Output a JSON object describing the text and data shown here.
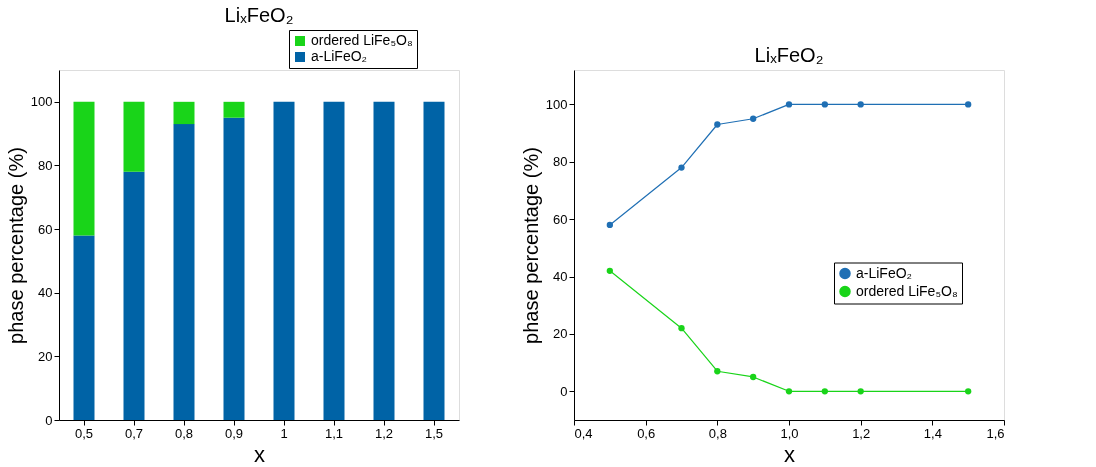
{
  "chart_data": [
    {
      "type": "bar",
      "title": "LiₓFeO₂",
      "xlabel": "x",
      "ylabel": "phase percentage (%)",
      "stacked": true,
      "categories": [
        "0,5",
        "0,7",
        "0,8",
        "0,9",
        "1",
        "1,1",
        "1,2",
        "1,5"
      ],
      "series": [
        {
          "name": "a-LiFeO₂",
          "color": "#0063a6",
          "values": [
            58,
            78,
            93,
            95,
            100,
            100,
            100,
            100
          ]
        },
        {
          "name": "ordered LiFe₅O₈",
          "color": "#19d419",
          "values": [
            42,
            22,
            7,
            5,
            0,
            0,
            0,
            0
          ]
        }
      ],
      "ylim": [
        0,
        110
      ],
      "yticks": [
        0,
        20,
        40,
        60,
        80,
        100
      ],
      "grid": false,
      "legend": "top right"
    },
    {
      "type": "line",
      "title": "LiₓFeO₂",
      "xlabel": "x",
      "ylabel": "phase percentage (%)",
      "x": [
        0.5,
        0.7,
        0.8,
        0.9,
        1.0,
        1.1,
        1.2,
        1.5
      ],
      "series": [
        {
          "name": "a-LiFeO₂",
          "color": "#1f6fb4",
          "values": [
            58,
            78,
            93,
            95,
            100,
            100,
            100,
            100
          ]
        },
        {
          "name": "ordered LiFe₅O₈",
          "color": "#19d419",
          "values": [
            42,
            22,
            7,
            5,
            0,
            0,
            0,
            0
          ]
        }
      ],
      "xlim": [
        0.4,
        1.6
      ],
      "xticks": [
        {
          "value": 0.4,
          "label": "0,4"
        },
        {
          "value": 0.6,
          "label": "0,6"
        },
        {
          "value": 0.8,
          "label": "0,8"
        },
        {
          "value": 1.0,
          "label": "1,0"
        },
        {
          "value": 1.2,
          "label": "1,2"
        },
        {
          "value": 1.4,
          "label": "1,4"
        },
        {
          "value": 1.6,
          "label": "1,6"
        }
      ],
      "ylim": [
        -10,
        112
      ],
      "yticks": [
        0,
        20,
        40,
        60,
        80,
        100
      ],
      "grid": false,
      "legend": "right",
      "marker": "circle",
      "line_style": "solid"
    }
  ]
}
